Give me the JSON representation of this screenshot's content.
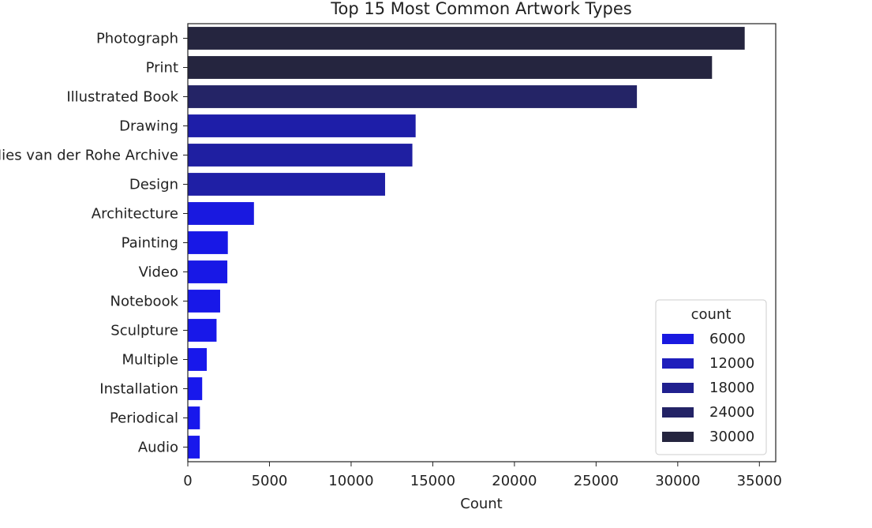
{
  "chart_data": {
    "type": "bar",
    "orientation": "horizontal",
    "title": "Top 15 Most Common Artwork Types",
    "xlabel": "Count",
    "ylabel": "",
    "xlim": [
      0,
      36000
    ],
    "x_ticks": [
      0,
      5000,
      10000,
      15000,
      20000,
      25000,
      30000,
      35000
    ],
    "x_tick_labels": [
      "0",
      "5000",
      "10000",
      "15000",
      "20000",
      "25000",
      "30000",
      "35000"
    ],
    "grid": false,
    "categories": [
      "Photograph",
      "Print",
      "Illustrated Book",
      "Drawing",
      "Mies van der Rohe Archive",
      "Design",
      "Architecture",
      "Painting",
      "Video",
      "Notebook",
      "Sculpture",
      "Multiple",
      "Installation",
      "Periodical",
      "Audio"
    ],
    "values": [
      34100,
      32100,
      27500,
      13950,
      13750,
      12080,
      4050,
      2450,
      2420,
      1980,
      1760,
      1160,
      880,
      740,
      730
    ],
    "colors": [
      "#25253f",
      "#25253f",
      "#242466",
      "#1e1ea8",
      "#1f1fa1",
      "#1f1fa5",
      "#1919e0",
      "#1818e6",
      "#1818e6",
      "#1818e8",
      "#1818e9",
      "#1818eb",
      "#1818ec",
      "#1818ec",
      "#1818ec"
    ],
    "legend": {
      "title": "count",
      "position": "lower-right",
      "entries": [
        {
          "label": "6000",
          "color": "#1919e0"
        },
        {
          "label": "12000",
          "color": "#1e1ebc"
        },
        {
          "label": "18000",
          "color": "#20208f"
        },
        {
          "label": "24000",
          "color": "#232366"
        },
        {
          "label": "30000",
          "color": "#25253f"
        }
      ]
    }
  }
}
